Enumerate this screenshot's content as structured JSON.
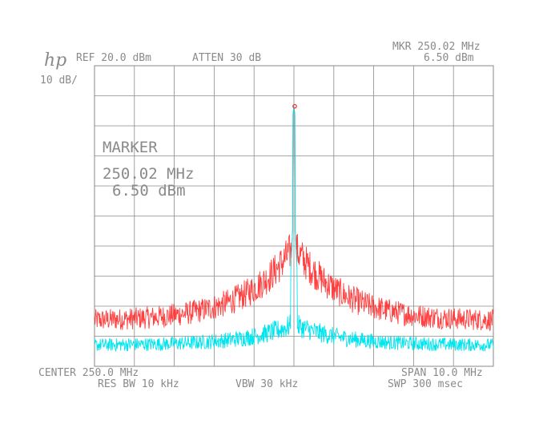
{
  "logo_text": "hp",
  "header": {
    "ref": "REF  20.0 dBm",
    "atten": "ATTEN 30 dB",
    "marker_readout_label": "MKR 250.02 MHz",
    "marker_readout_value": "6.50 dBm",
    "scale": "10 dB/"
  },
  "marker_box": {
    "title": "MARKER",
    "freq": "250.02 MHz",
    "level": "6.50 dBm"
  },
  "footer": {
    "center": "CENTER 250.0 MHz",
    "span": "SPAN 10.0 MHz",
    "res_bw": "RES BW 10 kHz",
    "vbw": "VBW 30 kHz",
    "sweep": "SWP 300 msec"
  },
  "colors": {
    "background": "#ffffff",
    "grid": "#8a8a8a",
    "trace_a": "#ff2020",
    "trace_b": "#00e5ee",
    "marker": "#ff2020"
  },
  "chart_data": {
    "type": "line",
    "x_unit": "MHz",
    "y_unit": "dBm",
    "xlim": [
      245.0,
      255.0
    ],
    "ylim": [
      -80.0,
      20.0
    ],
    "grid": true,
    "divisions": {
      "x": 10,
      "y": 10
    },
    "marker": {
      "x": 250.02,
      "y": 6.5
    },
    "series": [
      {
        "id": "trace_a",
        "color": "#ff2020",
        "shape": "noisy pedestal around carrier",
        "carrier": {
          "x": 250.0,
          "y": 6.5
        },
        "noise_floor": -65,
        "pedestal_peak": -40,
        "noise_pp": 10
      },
      {
        "id": "trace_b",
        "color": "#00e5ee",
        "shape": "carrier over noise floor",
        "carrier": {
          "x": 250.0,
          "y": 6.5
        },
        "noise_floor": -73,
        "pedestal_peak": -66,
        "noise_pp": 6
      }
    ]
  }
}
